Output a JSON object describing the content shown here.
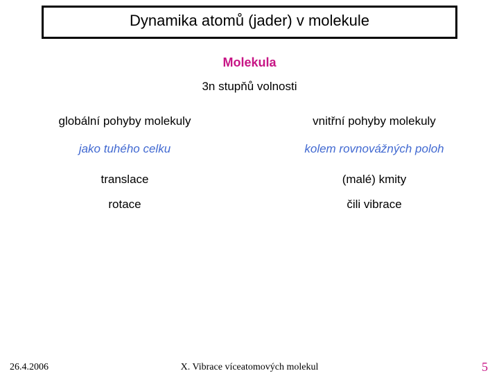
{
  "title": "Dynamika atomů (jader) v molekule",
  "heading1": {
    "text": "Molekula",
    "color": "#c71585"
  },
  "heading2": "3n stupňů volnosti",
  "left": {
    "line1": "globální pohyby molekuly",
    "line2": "jako tuhého celku",
    "item1": "translace",
    "item2": "rotace",
    "color1": "#000000",
    "color2": "#4169d1"
  },
  "right": {
    "line1": "vnitřní pohyby molekuly",
    "line2": "kolem rovnovážných poloh",
    "item1": "(malé)  kmity",
    "item2": "čili vibrace",
    "color1": "#000000",
    "color2": "#4169d1"
  },
  "footer": {
    "date": "26.4.2006",
    "center": "X. Vibrace víceatomových molekul",
    "page": "5",
    "page_color": "#c71585"
  }
}
